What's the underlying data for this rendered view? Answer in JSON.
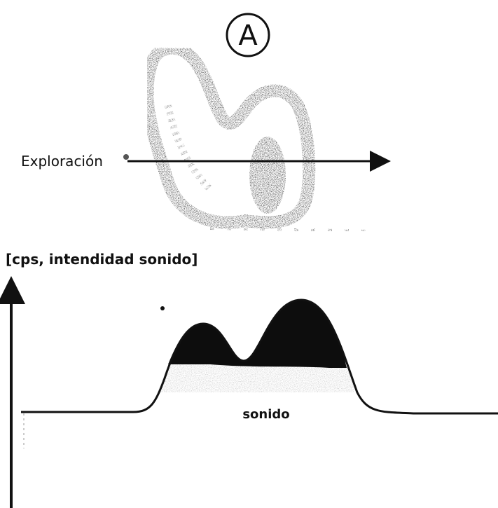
{
  "figure": {
    "label": "A",
    "scan_label": "Exploración",
    "axis_label": "[cps, intendidad sonido]",
    "curve_label": "sonido"
  }
}
